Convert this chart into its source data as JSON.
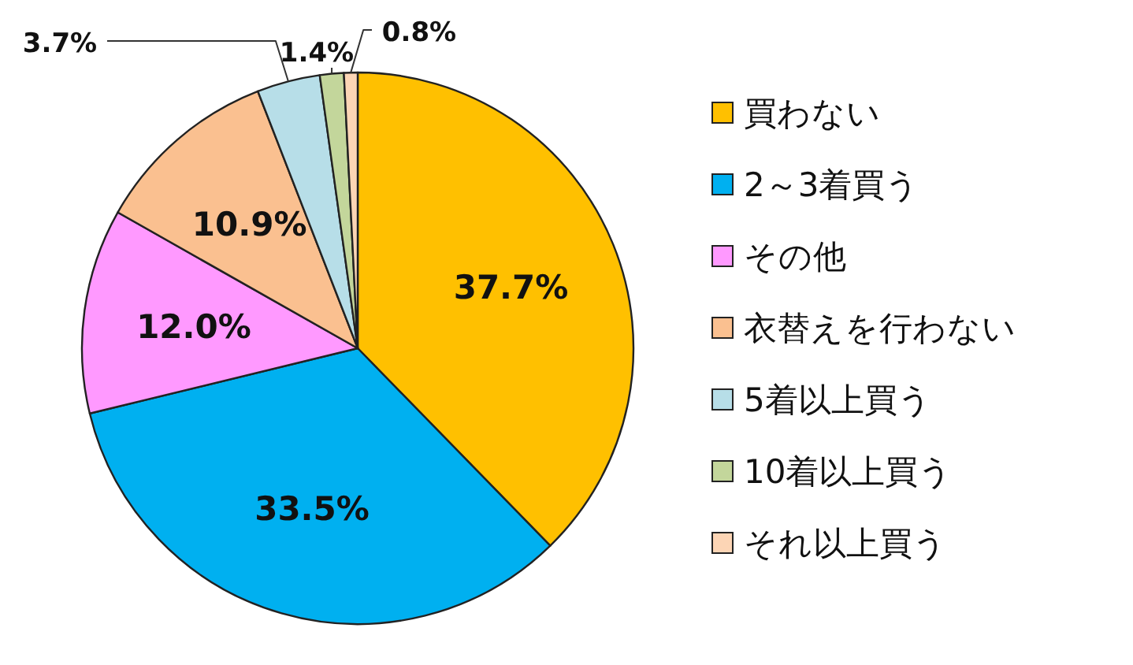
{
  "chart_data": {
    "type": "pie",
    "categories": [
      "買わない",
      "2～3着買う",
      "その他",
      "衣替えを行わない",
      "5着以上買う",
      "10着以上買う",
      "それ以上買う"
    ],
    "values": [
      37.7,
      33.5,
      12.0,
      10.9,
      3.7,
      1.4,
      0.8
    ],
    "colors": [
      "#ffc000",
      "#00b0f0",
      "#ff99ff",
      "#fac090",
      "#b7dee8",
      "#c3d69b",
      "#fcd5b5"
    ],
    "value_labels": [
      "37.7%",
      "33.5%",
      "12.0%",
      "10.9%",
      "3.7%",
      "1.4%",
      "0.8%"
    ],
    "legend": "right"
  }
}
